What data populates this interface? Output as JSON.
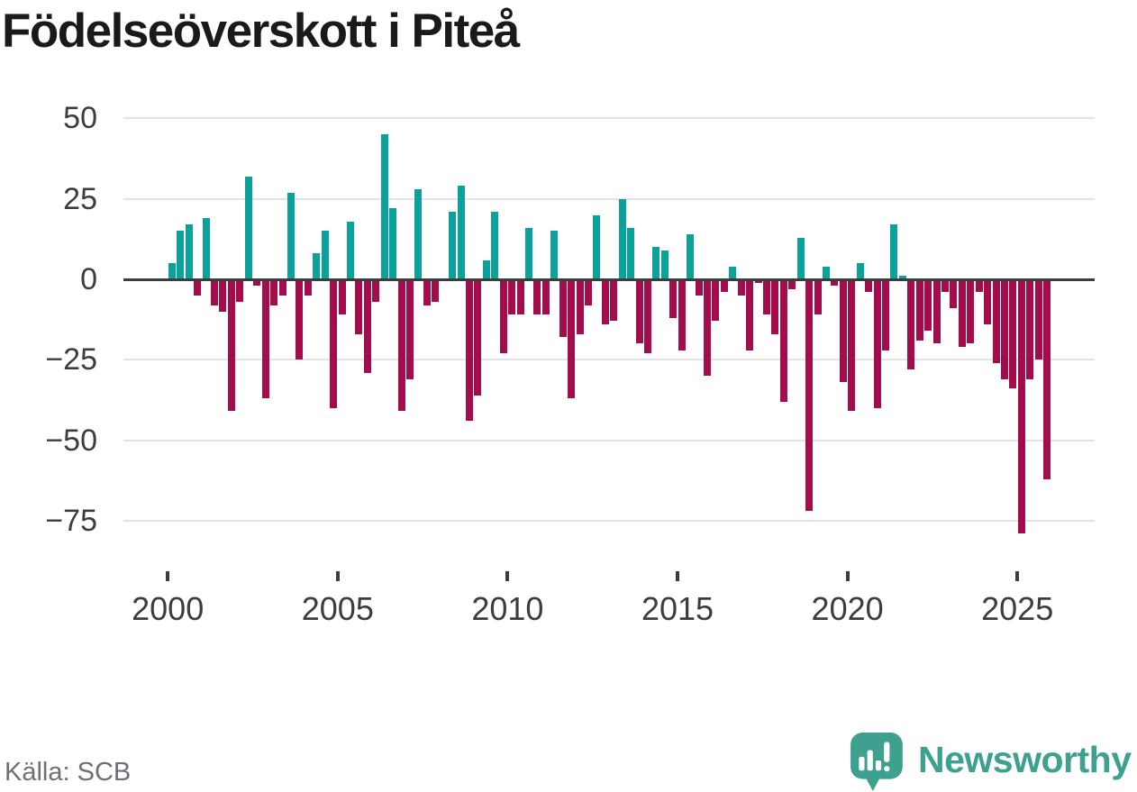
{
  "title": "Födelseöverskott i Piteå",
  "source": {
    "label": "Källa: SCB"
  },
  "branding": {
    "name": "Newsworthy",
    "logo_icon": "newsworthy-speech-bubble-chart-icon"
  },
  "colors": {
    "positive_bar": "#0ca29c",
    "negative_bar": "#a30d4c",
    "gridline": "#e3e3e3",
    "zero_line": "#3c3c3c",
    "axis_text": "#3d3d3d",
    "title_text": "#1a1a1a",
    "source_text": "#6d7177",
    "brand_teal": "#3ea08f"
  },
  "chart_data": {
    "type": "bar",
    "title": "Födelseöverskott i Piteå",
    "xlabel": "",
    "ylabel": "",
    "x_unit": "quarter",
    "grid": "horizontal",
    "legend": "none",
    "y_ticks": [
      50,
      25,
      0,
      -25,
      -50,
      -75
    ],
    "ylim": [
      -85,
      57
    ],
    "x_tick_labels": [
      "2000",
      "2005",
      "2010",
      "2015",
      "2020",
      "2025"
    ],
    "positive_color": "#0ca29c",
    "negative_color": "#a30d4c",
    "years": [
      {
        "year": 2000,
        "q": [
          5,
          15,
          17,
          -5
        ]
      },
      {
        "year": 2001,
        "q": [
          19,
          -8,
          -10,
          -41
        ]
      },
      {
        "year": 2002,
        "q": [
          -7,
          32,
          -2,
          -37
        ]
      },
      {
        "year": 2003,
        "q": [
          -8,
          -5,
          27,
          -25
        ]
      },
      {
        "year": 2004,
        "q": [
          -5,
          8,
          15,
          -40
        ]
      },
      {
        "year": 2005,
        "q": [
          -11,
          18,
          -17,
          -29
        ]
      },
      {
        "year": 2006,
        "q": [
          -7,
          45,
          22,
          -41
        ]
      },
      {
        "year": 2007,
        "q": [
          -31,
          28,
          -8,
          -7
        ]
      },
      {
        "year": 2008,
        "q": [
          0,
          21,
          29,
          -44
        ]
      },
      {
        "year": 2009,
        "q": [
          -36,
          6,
          21,
          -23
        ]
      },
      {
        "year": 2010,
        "q": [
          -11,
          -11,
          16,
          -11
        ]
      },
      {
        "year": 2011,
        "q": [
          -11,
          15,
          -18,
          -37
        ]
      },
      {
        "year": 2012,
        "q": [
          -17,
          -8,
          20,
          -14
        ]
      },
      {
        "year": 2013,
        "q": [
          -13,
          25,
          16,
          -20
        ]
      },
      {
        "year": 2014,
        "q": [
          -23,
          10,
          9,
          -12
        ]
      },
      {
        "year": 2015,
        "q": [
          -22,
          14,
          -5,
          -30
        ]
      },
      {
        "year": 2016,
        "q": [
          -13,
          -4,
          4,
          -5
        ]
      },
      {
        "year": 2017,
        "q": [
          -22,
          -1,
          -11,
          -17
        ]
      },
      {
        "year": 2018,
        "q": [
          -38,
          -3,
          13,
          -72
        ]
      },
      {
        "year": 2019,
        "q": [
          -11,
          4,
          -2,
          -32
        ]
      },
      {
        "year": 2020,
        "q": [
          -41,
          5,
          -4,
          -40
        ]
      },
      {
        "year": 2021,
        "q": [
          -22,
          17,
          1,
          -28
        ]
      },
      {
        "year": 2022,
        "q": [
          -19,
          -16,
          -20,
          -4
        ]
      },
      {
        "year": 2023,
        "q": [
          -9,
          -21,
          -20,
          -4
        ]
      },
      {
        "year": 2024,
        "q": [
          -14,
          -26,
          -31,
          -34
        ]
      },
      {
        "year": 2025,
        "q": [
          -79,
          -31,
          -25,
          -62
        ]
      }
    ]
  }
}
